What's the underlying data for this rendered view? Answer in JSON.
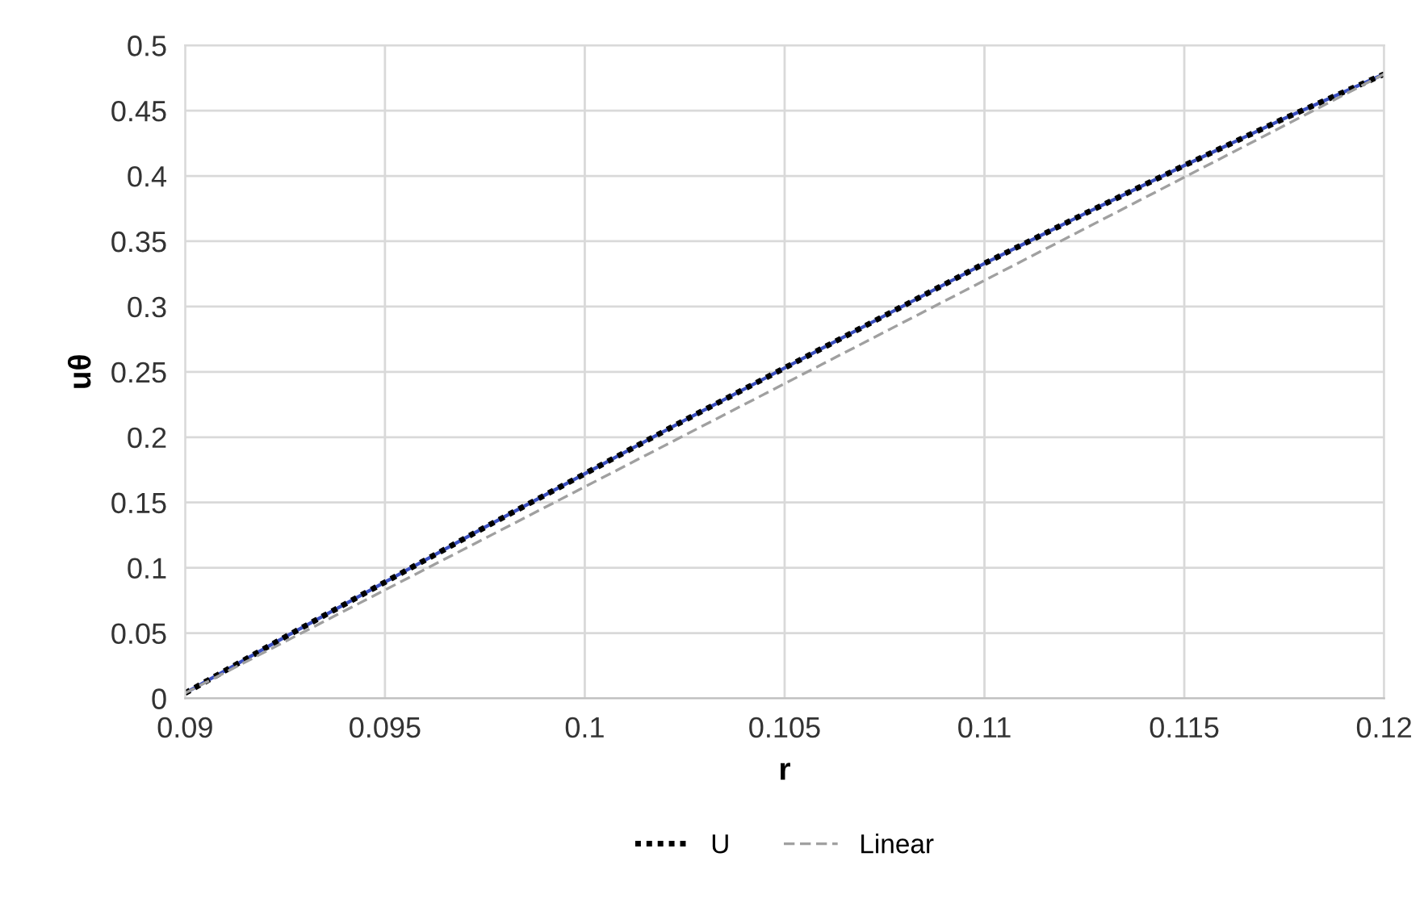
{
  "chart_data": {
    "type": "line",
    "xlabel": "r",
    "ylabel": "uθ",
    "xlim": [
      0.09,
      0.12
    ],
    "xticks": [
      {
        "value": 0.09,
        "label": "0.09"
      },
      {
        "value": 0.095,
        "label": "0.095"
      },
      {
        "value": 0.1,
        "label": "0.1"
      },
      {
        "value": 0.105,
        "label": "0.105"
      },
      {
        "value": 0.11,
        "label": "0.11"
      },
      {
        "value": 0.115,
        "label": "0.115"
      },
      {
        "value": 0.12,
        "label": "0.12"
      }
    ],
    "ylim": [
      0,
      0.5
    ],
    "yticks": [
      0,
      0.05,
      0.1,
      0.15,
      0.2,
      0.25,
      0.3,
      0.35,
      0.4,
      0.45,
      0.5
    ],
    "grid": true,
    "legend": "bottom",
    "series": [
      {
        "color": "#3a4fc0",
        "line_style": "solid",
        "x": [
          0.09,
          0.0925,
          0.095,
          0.0975,
          0.1,
          0.1025,
          0.105,
          0.1075,
          0.11,
          0.1125,
          0.115,
          0.1175,
          0.12
        ],
        "values": [
          0.004,
          0.047,
          0.089,
          0.131,
          0.172,
          0.213,
          0.253,
          0.293,
          0.333,
          0.371,
          0.408,
          0.444,
          0.478
        ]
      },
      {
        "name": "U",
        "color": "#000000",
        "line_style": "dotted",
        "x": [
          0.09,
          0.0925,
          0.095,
          0.0975,
          0.1,
          0.1025,
          0.105,
          0.1075,
          0.11,
          0.1125,
          0.115,
          0.1175,
          0.12
        ],
        "values": [
          0.004,
          0.047,
          0.089,
          0.131,
          0.172,
          0.213,
          0.253,
          0.293,
          0.333,
          0.371,
          0.408,
          0.444,
          0.478
        ]
      },
      {
        "name": "Linear",
        "color": "#a0a0a0",
        "line_style": "dashed",
        "x": [
          0.09,
          0.12
        ],
        "values": [
          0.004,
          0.478
        ]
      }
    ]
  }
}
